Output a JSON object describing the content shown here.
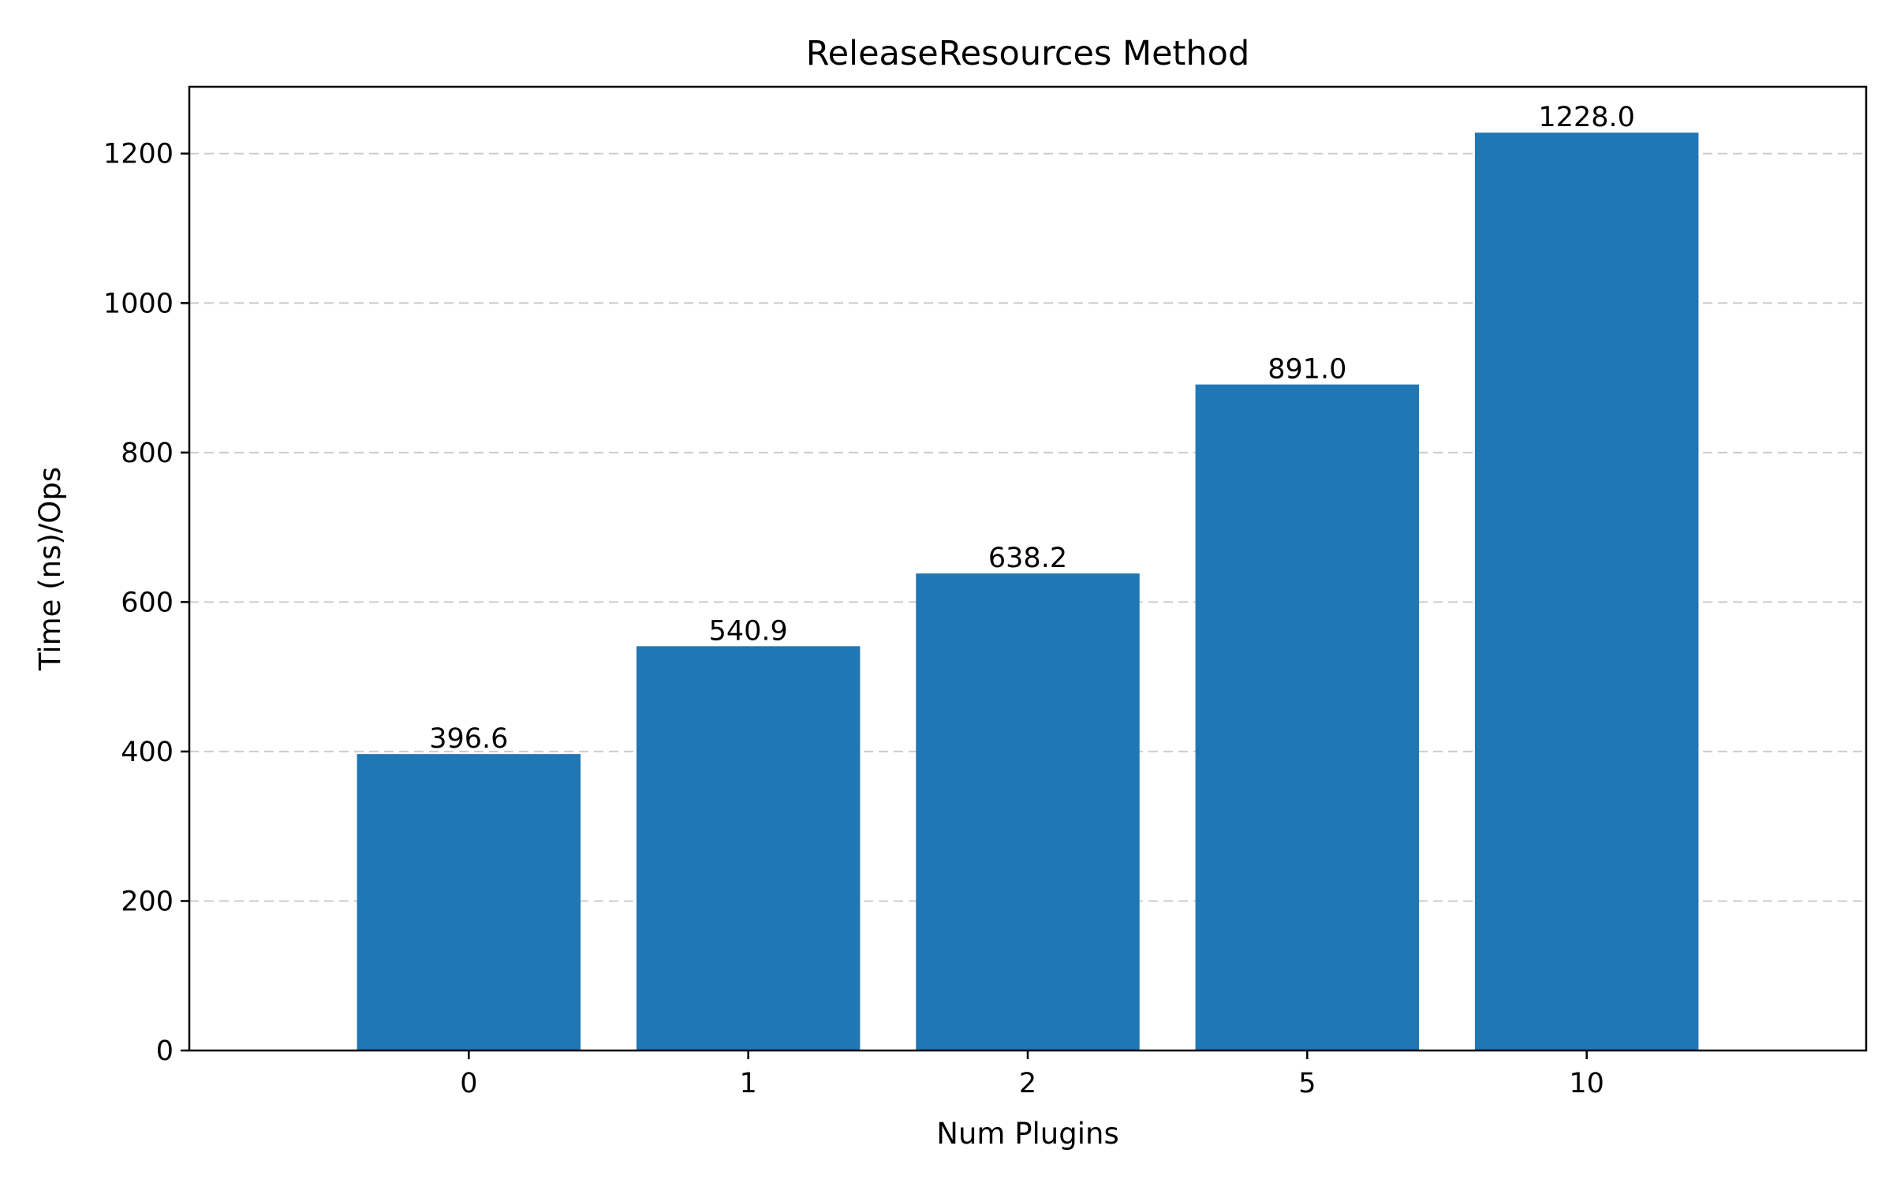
{
  "chart_data": {
    "type": "bar",
    "title": "ReleaseResources Method",
    "xlabel": "Num Plugins",
    "ylabel": "Time (ns)/Ops",
    "categories": [
      "0",
      "1",
      "2",
      "5",
      "10"
    ],
    "values": [
      396.6,
      540.9,
      638.2,
      891.0,
      1228.0
    ],
    "data_labels": [
      "396.6",
      "540.9",
      "638.2",
      "891.0",
      "1228.0"
    ],
    "ylim": [
      0,
      1289.4
    ],
    "yticks": [
      0,
      200,
      400,
      600,
      800,
      1000,
      1200
    ],
    "grid": "y-dashed",
    "bar_color": "#1f77b4"
  }
}
